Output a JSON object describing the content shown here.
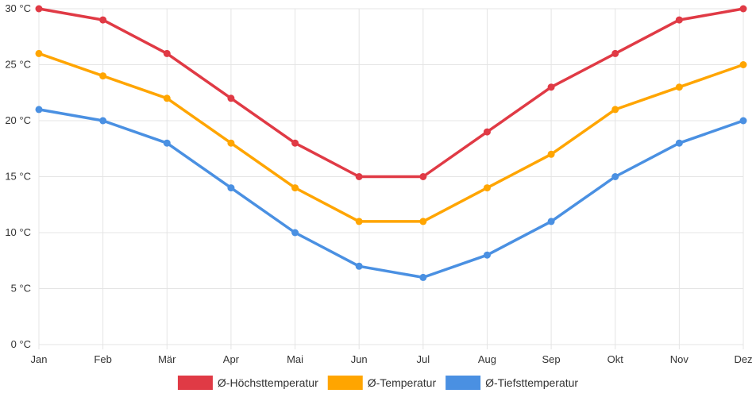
{
  "chart_data": {
    "type": "line",
    "categories": [
      "Jan",
      "Feb",
      "Mär",
      "Apr",
      "Mai",
      "Jun",
      "Jul",
      "Aug",
      "Sep",
      "Okt",
      "Nov",
      "Dez"
    ],
    "y_ticks": [
      "0 °C",
      "5 °C",
      "10 °C",
      "15 °C",
      "20 °C",
      "25 °C",
      "30 °C"
    ],
    "ylim": [
      0,
      30
    ],
    "grid": true,
    "legend_position": "bottom",
    "series": [
      {
        "name": "Ø-Höchsttemperatur",
        "color": "#e03a45",
        "values": [
          30,
          29,
          26,
          22,
          18,
          15,
          15,
          19,
          23,
          26,
          29,
          30
        ]
      },
      {
        "name": "Ø-Temperatur",
        "color": "#ffa500",
        "values": [
          26,
          24,
          22,
          18,
          14,
          11,
          11,
          14,
          17,
          21,
          23,
          25
        ]
      },
      {
        "name": "Ø-Tiefsttemperatur",
        "color": "#4a90e2",
        "values": [
          21,
          20,
          18,
          14,
          10,
          7,
          6,
          8,
          11,
          15,
          18,
          20
        ]
      }
    ]
  }
}
